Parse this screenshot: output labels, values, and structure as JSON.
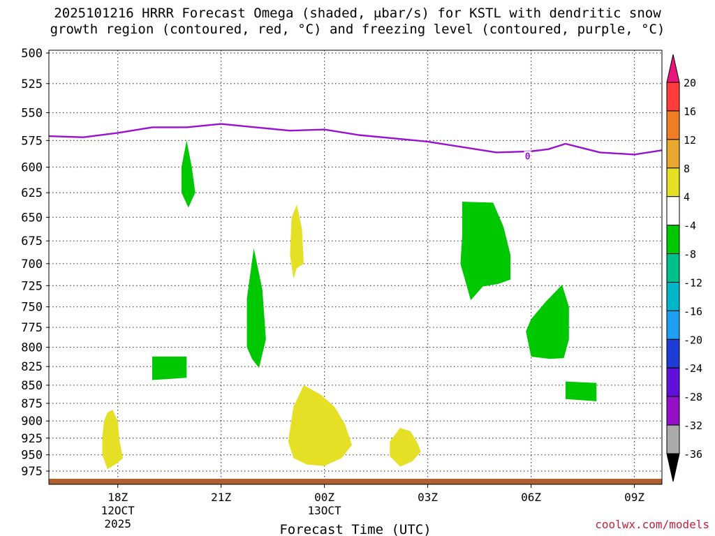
{
  "title_line1": "2025101216 HRRR Forecast Omega (shaded, μbar/s) for KSTL with dendritic snow",
  "title_line2": "growth region (contoured, red, °C) and freezing level (contoured, purple, °C)",
  "watermark": "coolwx.com/models",
  "chart_data": {
    "type": "area",
    "title": "2025101216 HRRR Forecast Omega (shaded, μbar/s) for KSTL with dendritic snow growth region (contoured, red, °C) and freezing level (contoured, purple, °C)",
    "xlabel": "Forecast Time (UTC)",
    "ylabel": "",
    "x_unit": "hours from 12Z 12 OCT 2025",
    "xlim": [
      4.0,
      21.8
    ],
    "ylim_hPa": [
      500,
      990
    ],
    "y_reversed": true,
    "y_scale": "log-pressure",
    "grid": true,
    "x_ticks": [
      {
        "x": 6,
        "label": "18Z",
        "sub1": "12OCT",
        "sub2": "2025"
      },
      {
        "x": 9,
        "label": "21Z",
        "sub1": "",
        "sub2": ""
      },
      {
        "x": 12,
        "label": "00Z",
        "sub1": "13OCT",
        "sub2": ""
      },
      {
        "x": 15,
        "label": "03Z",
        "sub1": "",
        "sub2": ""
      },
      {
        "x": 18,
        "label": "06Z",
        "sub1": "",
        "sub2": ""
      },
      {
        "x": 21,
        "label": "09Z",
        "sub1": "",
        "sub2": ""
      }
    ],
    "y_ticks": [
      500,
      525,
      550,
      575,
      600,
      625,
      650,
      675,
      700,
      725,
      750,
      775,
      800,
      825,
      850,
      875,
      900,
      925,
      950,
      975
    ],
    "colorbar": {
      "labels": [
        "20",
        "16",
        "12",
        "8",
        "4",
        "-4",
        "-8",
        "-12",
        "-16",
        "-20",
        "-24",
        "-28",
        "-32",
        "-36"
      ],
      "segments": [
        "#ff3b3b",
        "#f07d26",
        "#e6a82e",
        "#e5e025",
        "#ffffff",
        "#00c800",
        "#00c089",
        "#00b7c8",
        "#1ea0f0",
        "#1e3cd6",
        "#6010d8",
        "#9410c8",
        "#aaaaaa"
      ],
      "top_color": "#e8157d",
      "bottom_color": "#000000"
    },
    "freezing_level": {
      "label": "0",
      "label_at": [
        17.9,
        590
      ],
      "color": "#9910d0",
      "points": [
        [
          4.0,
          571
        ],
        [
          5,
          572
        ],
        [
          6,
          568
        ],
        [
          7,
          563
        ],
        [
          8,
          563
        ],
        [
          9,
          560
        ],
        [
          10,
          563
        ],
        [
          11,
          566
        ],
        [
          12,
          565
        ],
        [
          13,
          570
        ],
        [
          14,
          573
        ],
        [
          15,
          576
        ],
        [
          16,
          581
        ],
        [
          17,
          586
        ],
        [
          18,
          585
        ],
        [
          18.5,
          583
        ],
        [
          19,
          578
        ],
        [
          19.5,
          582
        ],
        [
          20,
          586
        ],
        [
          21,
          588
        ],
        [
          21.8,
          584
        ]
      ]
    },
    "ground": {
      "color": "#b06030",
      "top_hPa": 987
    },
    "regions": [
      {
        "value": 5,
        "color": "#e5e025",
        "points": [
          [
            5.6,
            900
          ],
          [
            5.7,
            888
          ],
          [
            5.85,
            884
          ],
          [
            6.0,
            900
          ],
          [
            6.05,
            928
          ],
          [
            6.15,
            955
          ],
          [
            6.0,
            962
          ],
          [
            5.7,
            972
          ],
          [
            5.55,
            950
          ],
          [
            5.55,
            925
          ]
        ]
      },
      {
        "value": 5,
        "color": "#e5e025",
        "points": [
          [
            11.2,
            637
          ],
          [
            11.35,
            662
          ],
          [
            11.4,
            700
          ],
          [
            11.2,
            705
          ],
          [
            11.1,
            717
          ],
          [
            11.0,
            690
          ],
          [
            11.05,
            650
          ]
        ]
      },
      {
        "value": 5,
        "color": "#e5e025",
        "points": [
          [
            11.4,
            850
          ],
          [
            11.9,
            863
          ],
          [
            12.3,
            880
          ],
          [
            12.6,
            905
          ],
          [
            12.8,
            935
          ],
          [
            12.5,
            955
          ],
          [
            12.0,
            967
          ],
          [
            11.5,
            965
          ],
          [
            11.1,
            955
          ],
          [
            10.95,
            930
          ],
          [
            11.1,
            880
          ]
        ]
      },
      {
        "value": 5,
        "color": "#e5e025",
        "points": [
          [
            14.5,
            915
          ],
          [
            14.7,
            932
          ],
          [
            14.8,
            945
          ],
          [
            14.55,
            960
          ],
          [
            14.2,
            968
          ],
          [
            13.9,
            952
          ],
          [
            13.9,
            930
          ],
          [
            14.2,
            910
          ]
        ]
      },
      {
        "value": -6,
        "color": "#00c800",
        "points": [
          [
            8.0,
            575
          ],
          [
            8.15,
            600
          ],
          [
            8.25,
            625
          ],
          [
            8.05,
            640
          ],
          [
            7.85,
            625
          ],
          [
            7.85,
            600
          ]
        ]
      },
      {
        "value": -6,
        "color": "#00c800",
        "points": [
          [
            9.95,
            683
          ],
          [
            10.2,
            730
          ],
          [
            10.3,
            790
          ],
          [
            10.1,
            827
          ],
          [
            9.9,
            815
          ],
          [
            9.75,
            800
          ],
          [
            9.75,
            740
          ]
        ]
      },
      {
        "value": -6,
        "color": "#00c800",
        "points": [
          [
            7.0,
            812
          ],
          [
            8.0,
            812
          ],
          [
            8.0,
            840
          ],
          [
            7.0,
            843
          ]
        ]
      },
      {
        "value": -6,
        "color": "#00c800",
        "points": [
          [
            16.0,
            634
          ],
          [
            16.9,
            635
          ],
          [
            17.2,
            660
          ],
          [
            17.4,
            690
          ],
          [
            17.4,
            718
          ],
          [
            17.05,
            723
          ],
          [
            16.6,
            726
          ],
          [
            16.25,
            742
          ],
          [
            15.95,
            700
          ],
          [
            16.0,
            670
          ]
        ]
      },
      {
        "value": -6,
        "color": "#00c800",
        "points": [
          [
            18.9,
            724
          ],
          [
            19.1,
            750
          ],
          [
            19.1,
            790
          ],
          [
            18.95,
            814
          ],
          [
            18.55,
            815
          ],
          [
            18.0,
            812
          ],
          [
            17.85,
            780
          ],
          [
            18.0,
            765
          ],
          [
            18.4,
            745
          ]
        ]
      },
      {
        "value": -6,
        "color": "#00c800",
        "points": [
          [
            19.0,
            845
          ],
          [
            19.9,
            847
          ],
          [
            19.9,
            872
          ],
          [
            19.0,
            869
          ]
        ]
      }
    ]
  }
}
